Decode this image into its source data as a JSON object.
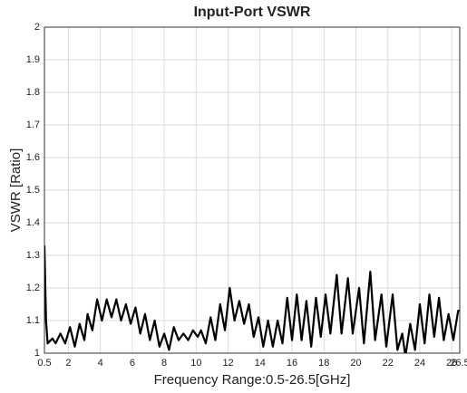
{
  "chart_data": {
    "type": "line",
    "title": "Input-Port VSWR",
    "xlabel": "Frequency Range:0.5-26.5[GHz]",
    "ylabel": "VSWR [Ratio]",
    "xlim": [
      0.5,
      26.5
    ],
    "ylim": [
      1,
      2
    ],
    "xticks": [
      0.5,
      2,
      4,
      6,
      8,
      10,
      12,
      14,
      16,
      18,
      20,
      22,
      24,
      26,
      26.5
    ],
    "yticks": [
      1,
      1.1,
      1.2,
      1.3,
      1.4,
      1.5,
      1.6,
      1.7,
      1.8,
      1.9,
      2
    ],
    "grid": true,
    "series": [
      {
        "color": "#000000",
        "x": [
          0.5,
          0.6,
          0.7,
          1.0,
          1.2,
          1.5,
          1.8,
          2.1,
          2.4,
          2.7,
          3.0,
          3.2,
          3.5,
          3.8,
          4.1,
          4.4,
          4.7,
          5.0,
          5.3,
          5.6,
          5.9,
          6.2,
          6.5,
          6.8,
          7.1,
          7.4,
          7.7,
          8.0,
          8.3,
          8.6,
          8.9,
          9.2,
          9.5,
          9.8,
          10.1,
          10.3,
          10.6,
          10.9,
          11.2,
          11.5,
          11.8,
          12.1,
          12.4,
          12.7,
          13.0,
          13.3,
          13.6,
          13.9,
          14.2,
          14.5,
          14.8,
          15.1,
          15.4,
          15.7,
          16.0,
          16.3,
          16.6,
          16.9,
          17.2,
          17.5,
          17.8,
          18.1,
          18.4,
          18.8,
          19.1,
          19.5,
          19.8,
          20.2,
          20.5,
          20.9,
          21.2,
          21.6,
          21.9,
          22.3,
          22.6,
          22.9,
          23.1,
          23.4,
          23.7,
          24.0,
          24.3,
          24.6,
          24.9,
          25.2,
          25.5,
          25.8,
          26.1,
          26.4,
          26.5
        ],
        "values": [
          1.33,
          1.1,
          1.03,
          1.045,
          1.03,
          1.06,
          1.03,
          1.08,
          1.02,
          1.09,
          1.04,
          1.12,
          1.07,
          1.165,
          1.1,
          1.165,
          1.11,
          1.165,
          1.1,
          1.15,
          1.09,
          1.14,
          1.06,
          1.12,
          1.04,
          1.1,
          1.02,
          1.06,
          1.01,
          1.08,
          1.04,
          1.06,
          1.04,
          1.07,
          1.05,
          1.07,
          1.03,
          1.11,
          1.04,
          1.15,
          1.07,
          1.2,
          1.1,
          1.16,
          1.09,
          1.15,
          1.05,
          1.11,
          1.02,
          1.1,
          1.02,
          1.1,
          1.03,
          1.17,
          1.04,
          1.18,
          1.04,
          1.16,
          1.02,
          1.17,
          1.05,
          1.18,
          1.06,
          1.24,
          1.06,
          1.23,
          1.06,
          1.2,
          1.03,
          1.25,
          1.04,
          1.18,
          1.02,
          1.18,
          1.01,
          1.06,
          0.99,
          1.09,
          1.01,
          1.15,
          1.03,
          1.18,
          1.05,
          1.17,
          1.04,
          1.12,
          1.04,
          1.13,
          1.13
        ]
      }
    ]
  }
}
